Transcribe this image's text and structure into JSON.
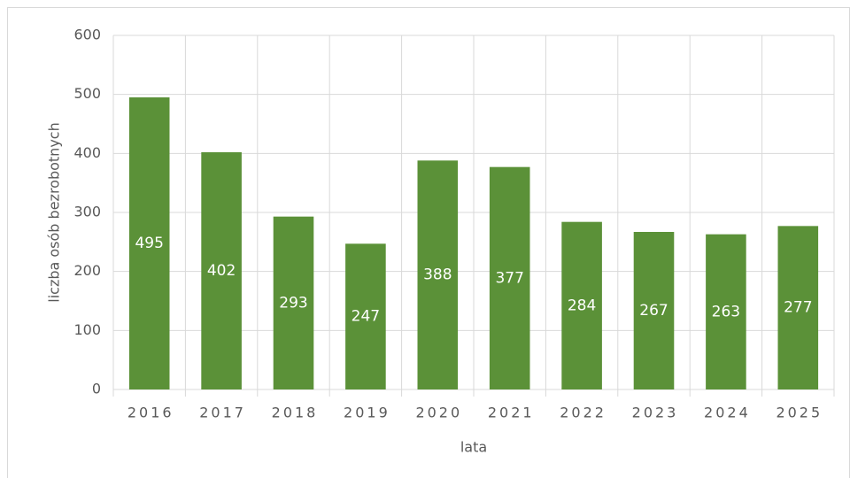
{
  "chart_data": {
    "type": "bar",
    "categories": [
      "2016",
      "2017",
      "2018",
      "2019",
      "2020",
      "2021",
      "2022",
      "2023",
      "2024",
      "2025"
    ],
    "values": [
      495,
      402,
      293,
      247,
      388,
      377,
      284,
      267,
      263,
      277
    ],
    "color": "#5b9138",
    "ylim": [
      0,
      600
    ],
    "yticks": [
      0,
      100,
      200,
      300,
      400,
      500,
      600
    ],
    "grid": true,
    "xlabel": "lata",
    "ylabel": "liczba osób bezrobotnych"
  }
}
